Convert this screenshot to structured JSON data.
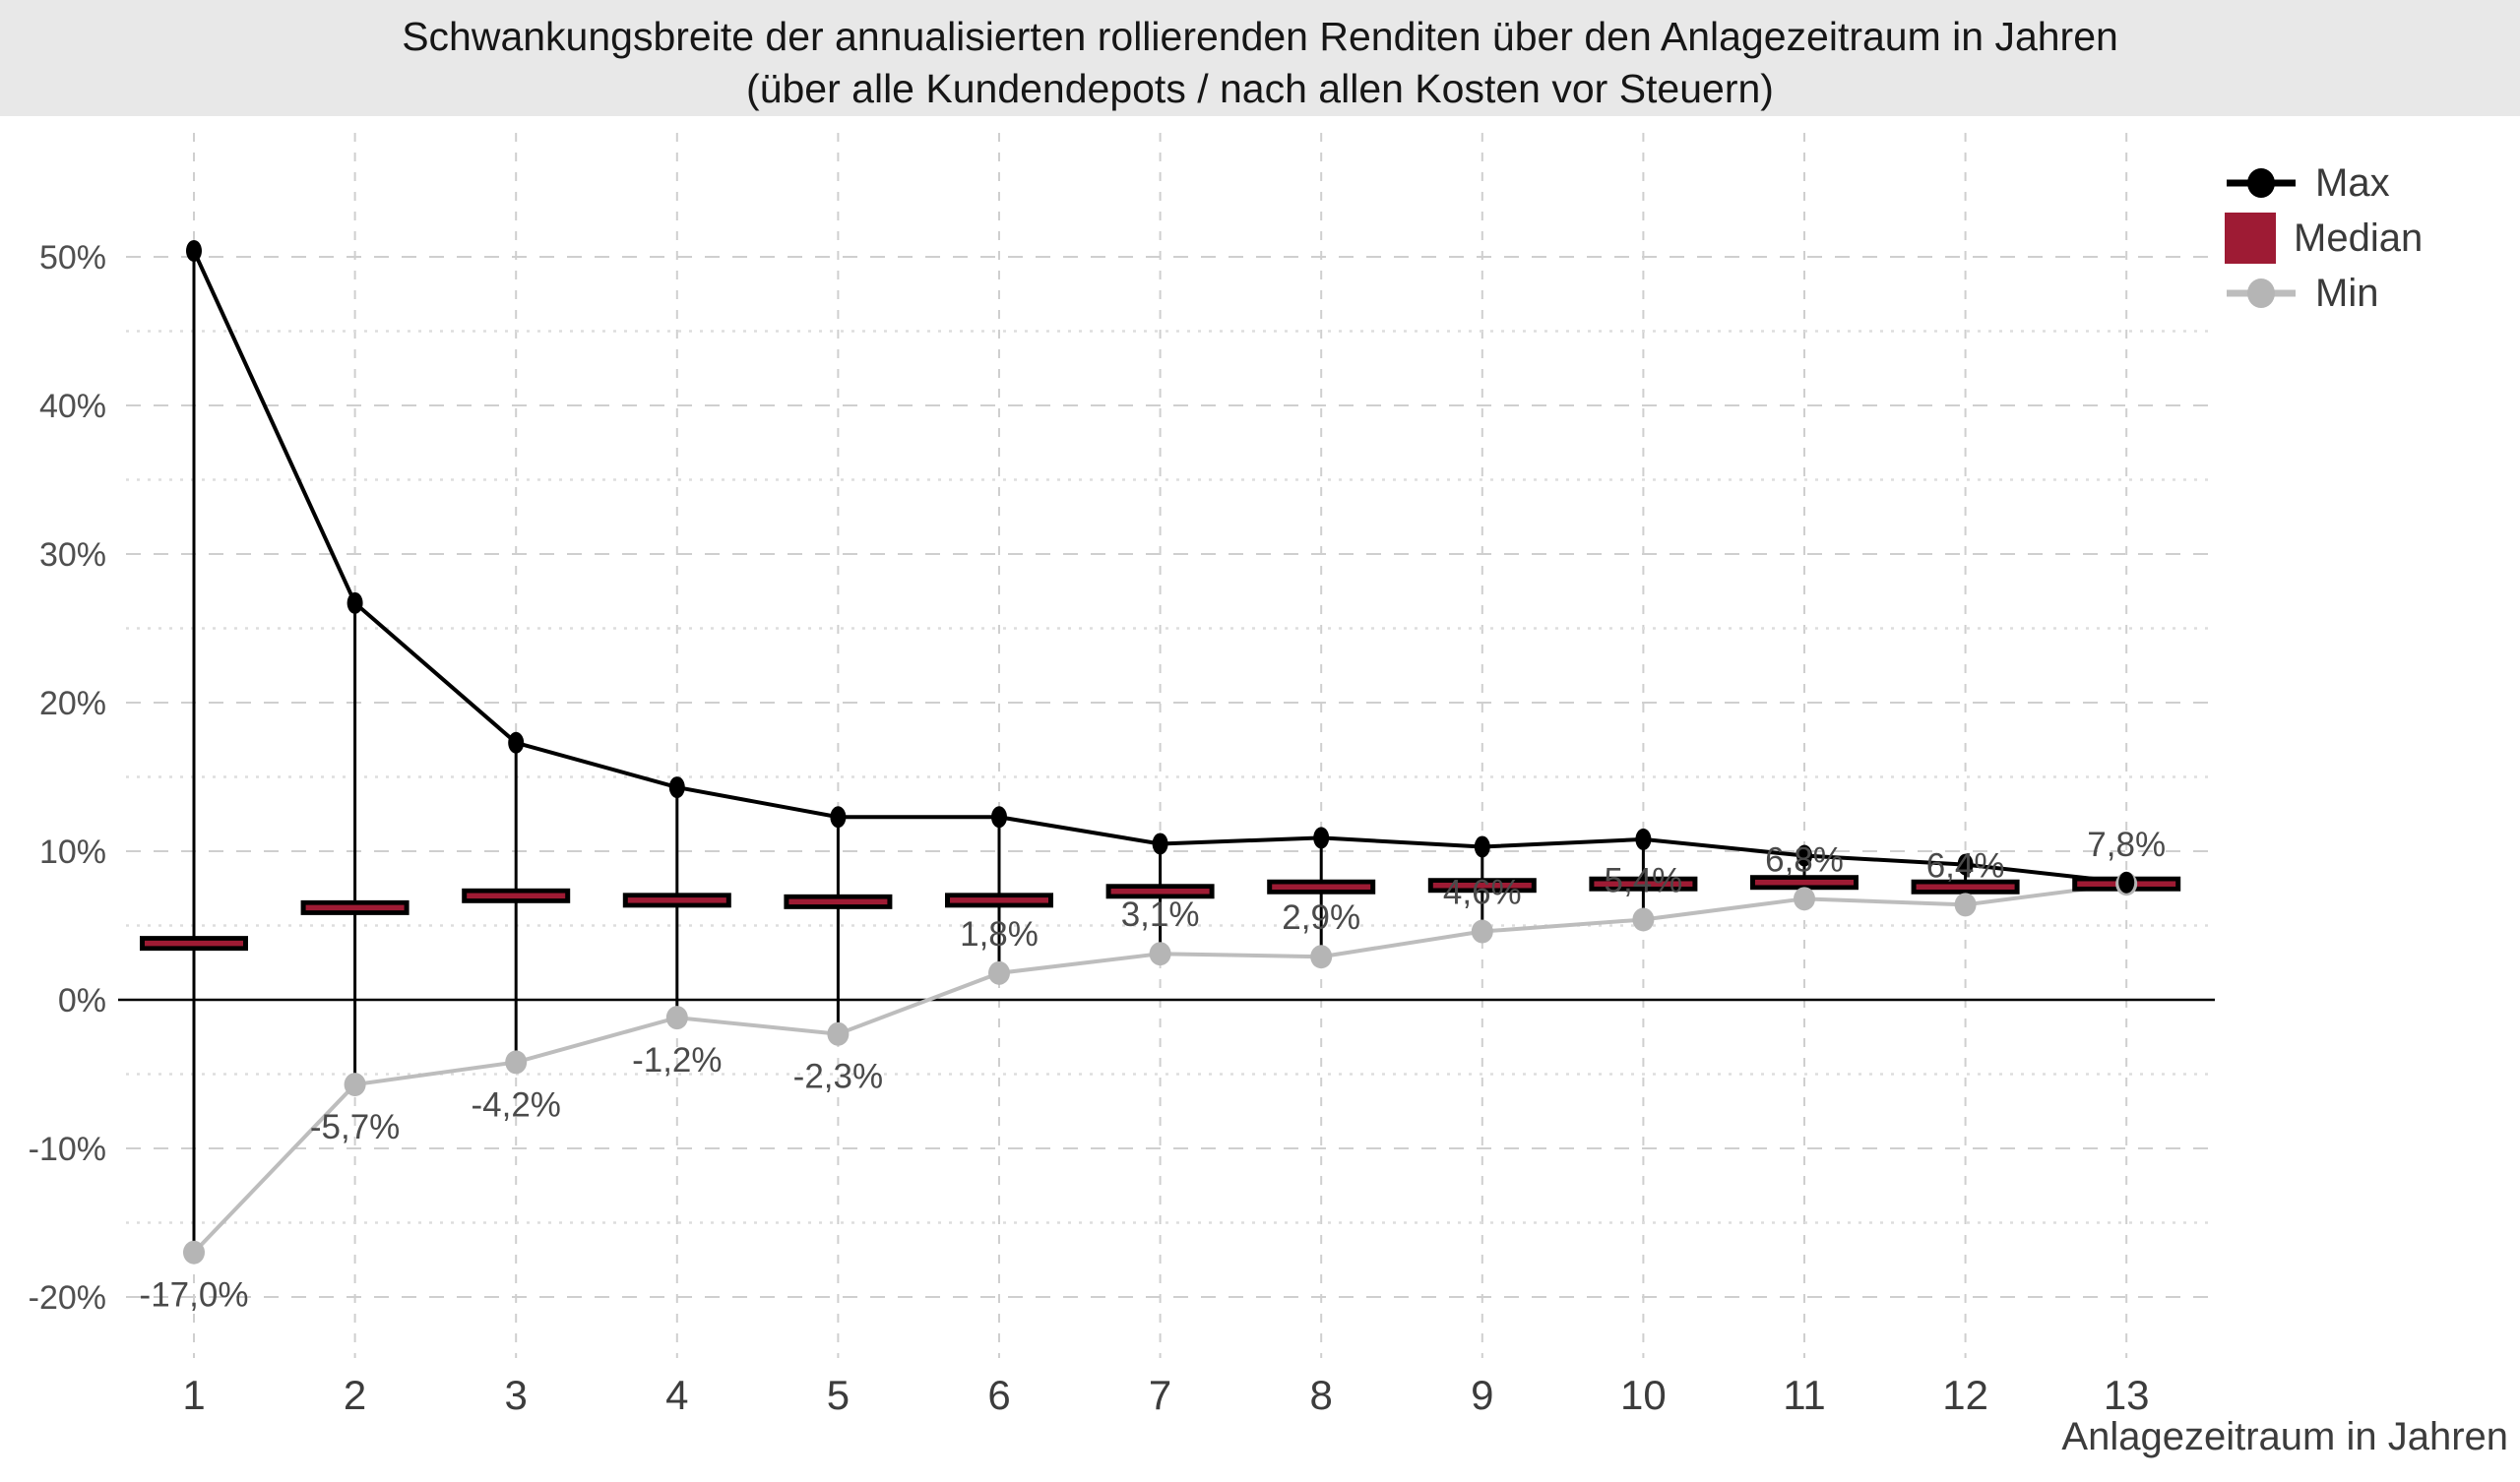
{
  "chart_data": {
    "type": "line",
    "title": "Schwankungsbreite der annualisierten rollierenden Renditen über den Anlagezeitraum in Jahren",
    "subtitle": "(über alle Kundendepots / nach allen Kosten vor Steuern)",
    "xlabel": "Anlagezeitraum in Jahren",
    "ylabel": "",
    "categories": [
      1,
      2,
      3,
      4,
      5,
      6,
      7,
      8,
      9,
      10,
      11,
      12,
      13
    ],
    "x_tick_labels": [
      "1",
      "2",
      "3",
      "4",
      "5",
      "6",
      "7",
      "8",
      "9",
      "10",
      "11",
      "12",
      "13"
    ],
    "series": [
      {
        "name": "Max",
        "marker": "line-with-dot",
        "color": "#000000",
        "values": [
          50.4,
          26.7,
          17.3,
          14.3,
          12.3,
          12.3,
          10.5,
          10.9,
          10.3,
          10.8,
          9.7,
          9.1,
          7.9
        ]
      },
      {
        "name": "Median",
        "marker": "horizontal-bar",
        "color": "#9e1b34",
        "border_color": "#000000",
        "values": [
          3.8,
          6.2,
          7.0,
          6.7,
          6.6,
          6.7,
          7.3,
          7.6,
          7.7,
          7.8,
          7.9,
          7.6,
          7.8
        ]
      },
      {
        "name": "Min",
        "marker": "line-with-dot",
        "color": "#bdbdbd",
        "dot_color": "#b5b5b5",
        "values": [
          -17.0,
          -5.7,
          -4.2,
          -1.2,
          -2.3,
          1.8,
          3.1,
          2.9,
          4.6,
          5.4,
          6.8,
          6.4,
          7.8
        ],
        "labels": [
          "-17,0%",
          "-5,7%",
          "-4,2%",
          "-1,2%",
          "-2,3%",
          "1,8%",
          "3,1%",
          "2,9%",
          "4,6%",
          "5,4%",
          "6,8%",
          "6,4%",
          "7,8%"
        ]
      }
    ],
    "whiskers": "vertical black line from Max to Min at each category",
    "y_ticks_major": [
      {
        "label": "50%",
        "value": 50
      },
      {
        "label": "40%",
        "value": 40
      },
      {
        "label": "30%",
        "value": 30
      },
      {
        "label": "20%",
        "value": 20
      },
      {
        "label": "10%",
        "value": 10
      },
      {
        "label": "0%",
        "value": 0
      },
      {
        "label": "-10%",
        "value": -10
      },
      {
        "label": "-20%",
        "value": -20
      }
    ],
    "y_ticks_minor": [
      45,
      35,
      25,
      15,
      5,
      -5,
      -15
    ],
    "ylim": [
      -22,
      57
    ],
    "grid": true,
    "zero_line": true,
    "legend_position": "top-right",
    "colors": {
      "grid_major": "#cfcfcf",
      "grid_minor": "#dddddd",
      "tick_label": "#4f4f4f",
      "data_label": "#4a4a4a",
      "title_band_bg": "#e8e8e8"
    }
  }
}
